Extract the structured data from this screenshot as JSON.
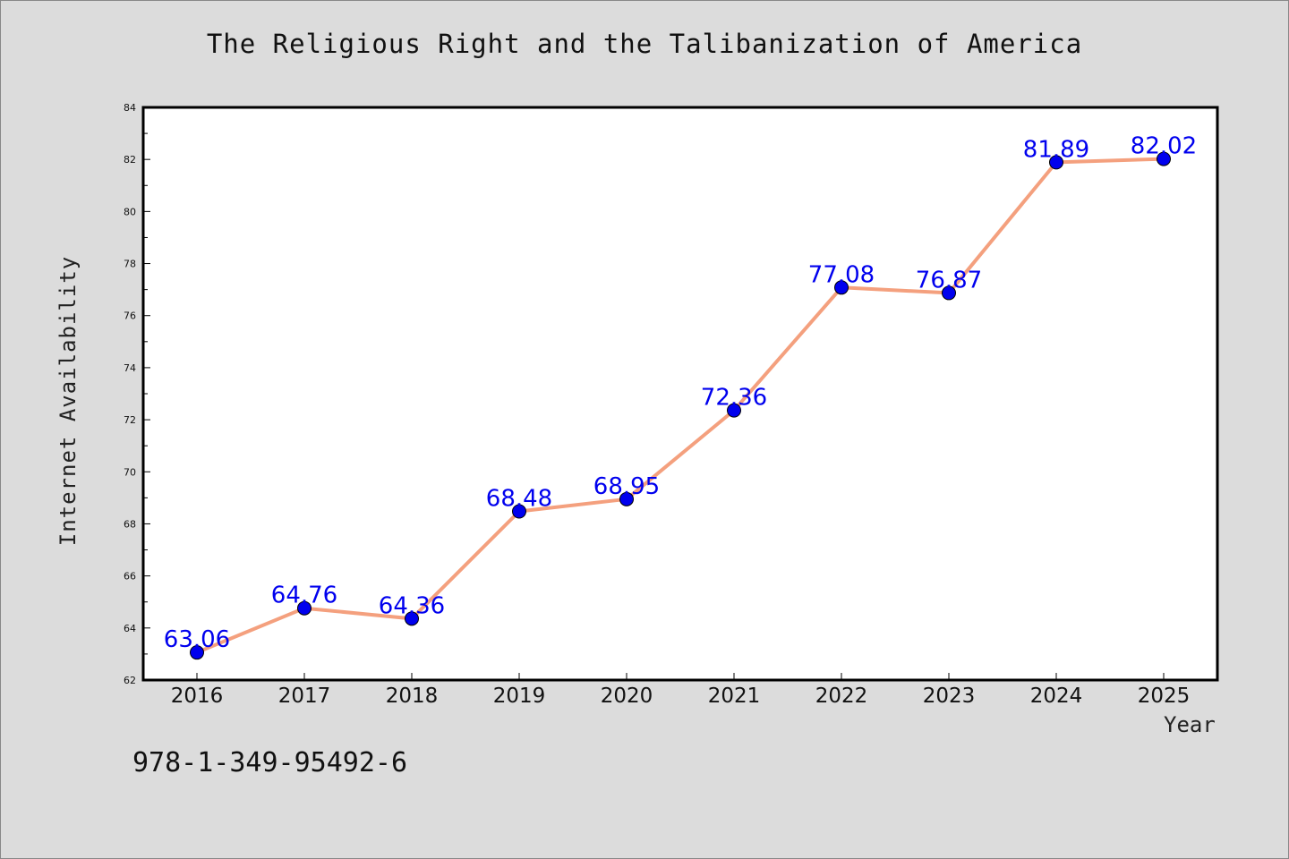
{
  "chart_data": {
    "type": "line",
    "title": "The Religious Right and the Talibanization of America",
    "xlabel": "Year",
    "ylabel": "Internet Availability",
    "categories": [
      "2016",
      "2017",
      "2018",
      "2019",
      "2020",
      "2021",
      "2022",
      "2023",
      "2024",
      "2025"
    ],
    "values": [
      63.06,
      64.76,
      64.36,
      68.48,
      68.95,
      72.36,
      77.08,
      76.87,
      81.89,
      82.02
    ],
    "data_labels": [
      "63.06",
      "64.76",
      "64.36",
      "68.48",
      "68.95",
      "72.36",
      "77.08",
      "76.87",
      "81.89",
      "82.02"
    ],
    "ylim": [
      62,
      84
    ],
    "yticks": [
      "62",
      "64",
      "66",
      "68",
      "70",
      "72",
      "74",
      "76",
      "78",
      "80",
      "82",
      "84"
    ],
    "grid": false,
    "legend": "none",
    "line_color": "#f4a07e",
    "marker_color": "#0000ee",
    "label_color": "#0000ee"
  },
  "footer_text": "978-1-349-95492-6"
}
